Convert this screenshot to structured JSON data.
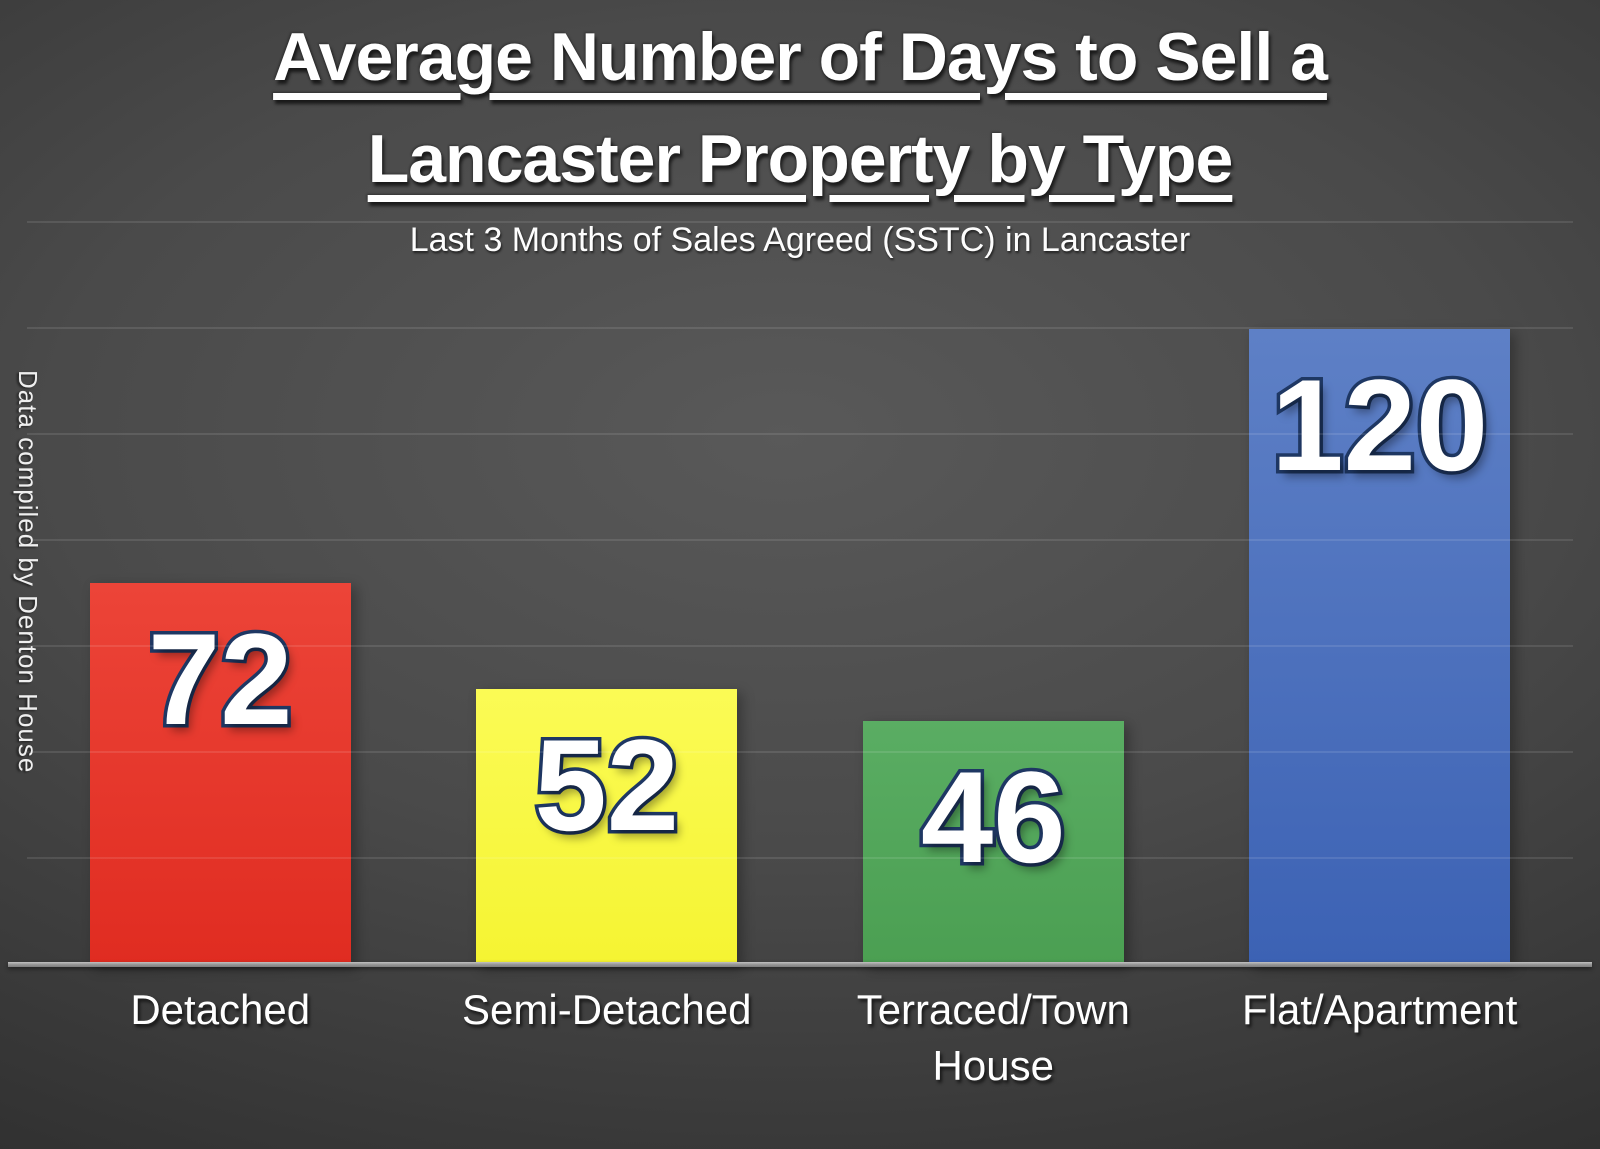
{
  "slide": {
    "title_line1": "Average Number of Days to Sell a",
    "title_line2": "Lancaster Property by Type",
    "subtitle": "Last 3 Months of Sales Agreed (SSTC) in Lancaster",
    "side_note": "Data compiled by Denton House"
  },
  "chart_data": {
    "type": "bar",
    "title": "Average Number of Days to Sell a Lancaster Property by Type",
    "subtitle": "Last 3 Months of Sales Agreed (SSTC) in Lancaster",
    "annotation": "Data compiled by Denton House",
    "categories": [
      "Detached",
      "Semi-Detached",
      "Terraced/Town House",
      "Flat/Apartment"
    ],
    "values": [
      72,
      52,
      46,
      120
    ],
    "bar_colors": [
      "#e23024",
      "#f8f83f",
      "#52a65a",
      "#4a6fc0"
    ],
    "bar_gradients": [
      [
        "#ec4438",
        "#e02c21"
      ],
      [
        "#fbfb55",
        "#f5f432"
      ],
      [
        "#5aad63",
        "#4b9f52"
      ],
      [
        "#5e80c6",
        "#3c62b4"
      ]
    ],
    "value_label_color": "#ffffff",
    "value_label_outline": "#1f3864",
    "xlabel": "",
    "ylabel": "",
    "ylim": [
      0,
      140
    ],
    "grid_step": 20,
    "gridlines_visible": true,
    "y_tick_labels_visible": false,
    "legend": "none",
    "value_labels_position": "inside-top",
    "background": "dark-charcoal-radial"
  }
}
